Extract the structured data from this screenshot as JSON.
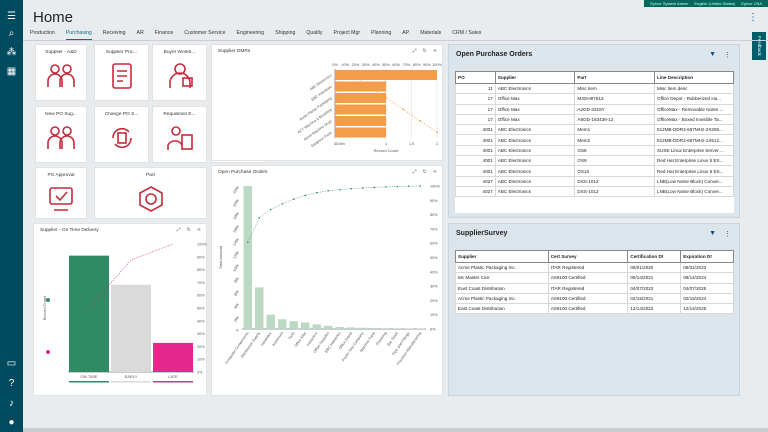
{
  "header": {
    "title": "Home",
    "user_strip": [
      "Epicor System Admin",
      "English (United States)",
      "Epicor USA"
    ],
    "feedback": "Feedback"
  },
  "tabs": [
    {
      "label": "Production"
    },
    {
      "label": "Purchasing",
      "active": true
    },
    {
      "label": "Receiving"
    },
    {
      "label": "AR"
    },
    {
      "label": "Finance"
    },
    {
      "label": "Customer Service"
    },
    {
      "label": "Engineering"
    },
    {
      "label": "Shipping"
    },
    {
      "label": "Quality"
    },
    {
      "label": "Project Mgr"
    },
    {
      "label": "Planning"
    },
    {
      "label": "AP"
    },
    {
      "label": "Materials"
    },
    {
      "label": "CRM / Sales"
    }
  ],
  "tiles": [
    {
      "label": "Supplier - A&D",
      "icon": "team-icon"
    },
    {
      "label": "Supplier Pric...",
      "icon": "price-list-icon"
    },
    {
      "label": "Buyer Workb...",
      "icon": "buyer-icon"
    },
    {
      "label": "Purchase Or...",
      "icon": "purchase-order-icon"
    },
    {
      "label": "New PO Sug...",
      "icon": "team-icon"
    },
    {
      "label": "Change PO S...",
      "icon": "change-cycle-icon"
    },
    {
      "label": "Requisition E...",
      "icon": "requisition-icon"
    },
    {
      "label": "Advisor",
      "icon": "advisor-icon"
    },
    {
      "label": "PO Approval",
      "icon": "approval-icon"
    },
    {
      "label": "Part",
      "icon": "part-nut-icon"
    }
  ],
  "supplier_dmrs": {
    "title": "Supplier DMRs",
    "xlabel": "Record Count",
    "top_ticks": [
      "0%",
      "10%",
      "20%",
      "30%",
      "40%",
      "50%",
      "60%",
      "70%",
      "80%",
      "90%",
      "100%"
    ],
    "bottom_ticks": [
      "0",
      "100m",
      "1",
      "1.5",
      "2"
    ],
    "categories": [
      "Sampson Parts",
      "Acme Machine Shop",
      "ACT Machine & Moulding",
      "Acme Plastic Packaging",
      "EBC Industries",
      "ABC Electronics"
    ],
    "values": [
      1,
      1,
      1,
      1,
      1,
      2
    ]
  },
  "open_po_chart": {
    "title": "Open Purchase Orders",
    "ylabel": "Total Amount",
    "right_ticks": [
      "0%",
      "10%",
      "20%",
      "30%",
      "40%",
      "50%",
      "60%",
      "70%",
      "80%",
      "90%",
      "100%"
    ],
    "left_ticks": [
      "0",
      "20k",
      "40k",
      "60k",
      "80k",
      "100k",
      "120k",
      "140k",
      "160k",
      "180k",
      "200k",
      "220k"
    ],
    "categories": [
      "Computer Components",
      "Workbench Supply",
      "Hardware",
      "Aluminum",
      "Tools",
      "Office Max",
      "Fasteners",
      "Office Supplies",
      "EBC Industries",
      "Office Depot",
      "Power Tool Company",
      "Machine Parts",
      "Plumbing",
      "Bar Stock",
      "Pipe and Fittings",
      "Precision Manufacturing"
    ],
    "values": [
      228000,
      64000,
      22000,
      15000,
      12000,
      10000,
      7000,
      5000,
      3000,
      2500,
      2000,
      1500,
      1200,
      1000,
      800,
      600
    ]
  },
  "on_time": {
    "title": "Supplier - On Time Delivery",
    "ylabel": "Record Count",
    "right_ticks": [
      "0%",
      "10%",
      "20%",
      "30%",
      "40%",
      "50%",
      "60%",
      "70%",
      "80%",
      "90%",
      "100%"
    ],
    "categories": [
      "ON-TIME",
      "EARLY",
      "LATE"
    ],
    "values": [
      4,
      3,
      1
    ]
  },
  "open_po_grid": {
    "title": "Open Purchase Orders",
    "columns": [
      "PO",
      "Supplier",
      "Part",
      "Line Description"
    ],
    "rows": [
      [
        "11",
        "ABC Electronics",
        "Misc item",
        "Misc item desc"
      ],
      [
        "17",
        "Office Max",
        "M3OH97613",
        "Office Depot - Rubberized Ha..."
      ],
      [
        "17",
        "Office Max",
        "A2OD-3318Y",
        "OfficeMax - Removable Notes ..."
      ],
      [
        "17",
        "Office Max",
        "A8OD-183436-12",
        "OfficeMax - Boxed Invisible Ta..."
      ],
      [
        "4001",
        "ABC Electronics",
        "Mem1",
        "512MB-DDR2-667MHz-2X256..."
      ],
      [
        "4001",
        "ABC Electronics",
        "Mem2",
        "512MB-DDR2-667MHz-1X512..."
      ],
      [
        "4001",
        "ABC Electronics",
        "OS8",
        "SUSE Linux Enterprise Server ..."
      ],
      [
        "4001",
        "ABC Electronics",
        "OS9",
        "Red Hat Enterprise Linux 5 ES..."
      ],
      [
        "4001",
        "ABC Electronics",
        "OS10",
        "Red Hat Enterprise Linux 5 ES..."
      ],
      [
        "4027",
        "ABC Electronics",
        "DSS-1012",
        "LNB(Low Noise Block) Conver..."
      ],
      [
        "4027",
        "ABC Electronics",
        "DSS-1012",
        "LNB(Low Noise Block) Conver..."
      ]
    ]
  },
  "supplier_survey": {
    "title": "SupplierSurvey",
    "columns": [
      "Supplier",
      "Cert Survey",
      "Certification Dt",
      "Expiration Dt"
    ],
    "rows": [
      [
        "Acme Plastic Packaging Inc.",
        "ITAR Registered",
        "06/01/2020",
        "06/01/2023"
      ],
      [
        "Mc Master Carr",
        "AS9100 Certified",
        "09/14/2021",
        "09/14/2024"
      ],
      [
        "East Coast Distribution",
        "ITAR Registered",
        "04/07/2022",
        "04/07/2025"
      ],
      [
        "Acme Plastic Packaging Inc.",
        "AS9100 Certified",
        "02/15/2021",
        "02/15/2024"
      ],
      [
        "East Coast Distribution",
        "AS9100 Certified",
        "12/14/2022",
        "12/14/2025"
      ]
    ]
  },
  "colors": {
    "rail": "#004b5e",
    "icon_red": "#c62b3b",
    "bar_orange": "#f39c4a",
    "bar_green": "#2e8b63",
    "bar_gray": "#dadada",
    "bar_pink": "#e5278c",
    "pareto_green": "#bcd9c3"
  }
}
